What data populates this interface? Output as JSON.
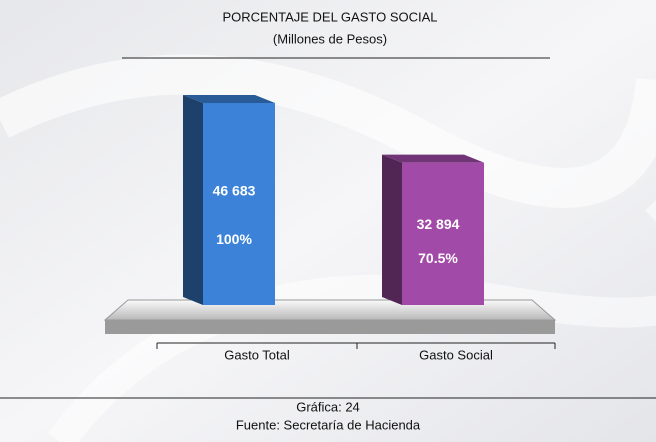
{
  "chart_data": {
    "type": "bar3d",
    "title": "PORCENTAJE DEL GASTO SOCIAL",
    "subtitle": "(Millones de Pesos)",
    "categories": [
      "Gasto Total",
      "Gasto Social"
    ],
    "values": [
      46683,
      32894
    ],
    "value_labels": [
      "46 683",
      "32 894"
    ],
    "shares": [
      100,
      70.5
    ],
    "share_labels": [
      "100%",
      "70.5%"
    ],
    "colors": [
      "#3b82d8",
      "#a24aa8"
    ],
    "caption": "Gráfica: 24",
    "source": "Fuente: Secretaría de Hacienda"
  }
}
